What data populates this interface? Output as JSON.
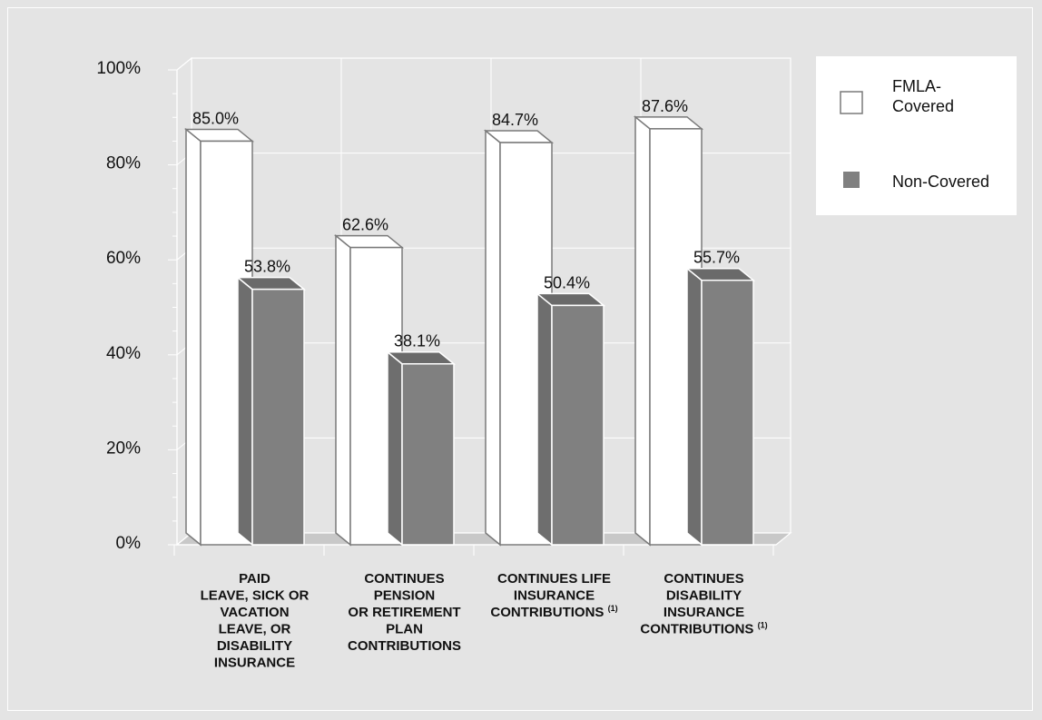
{
  "chart_data": {
    "type": "bar",
    "categories": [
      "PAID LEAVE, SICK OR VACATION LEAVE, OR DISABILITY INSURANCE",
      "CONTINUES PENSION OR RETIREMENT PLAN CONTRIBUTIONS",
      "CONTINUES LIFE INSURANCE CONTRIBUTIONS (1)",
      "CONTINUES DISABILITY INSURANCE CONTRIBUTIONS (1)"
    ],
    "category_lines": [
      [
        "PAID",
        "LEAVE, SICK OR",
        "VACATION",
        "LEAVE, OR",
        "DISABILITY",
        "INSURANCE"
      ],
      [
        "CONTINUES",
        "PENSION",
        "OR RETIREMENT",
        "PLAN",
        "CONTRIBUTIONS"
      ],
      [
        "CONTINUES LIFE",
        "INSURANCE",
        "CONTRIBUTIONS (1)"
      ],
      [
        "CONTINUES",
        "DISABILITY",
        "INSURANCE",
        "CONTRIBUTIONS (1)"
      ]
    ],
    "series": [
      {
        "name": "FMLA-Covered",
        "values": [
          85.0,
          62.6,
          84.7,
          87.6
        ],
        "labels": [
          "85.0%",
          "62.6%",
          "84.7%",
          "87.6%"
        ],
        "color": "#ffffff"
      },
      {
        "name": "Non-Covered",
        "values": [
          53.8,
          38.1,
          50.4,
          55.7
        ],
        "labels": [
          "53.8%",
          "38.1%",
          "50.4%",
          "55.7%"
        ],
        "color": "#808080"
      }
    ],
    "yticks": [
      "0%",
      "20%",
      "40%",
      "60%",
      "80%",
      "100%"
    ],
    "ylim": [
      0,
      100
    ],
    "grid": true,
    "legend": "right",
    "three_d": true
  },
  "legend": {
    "items": [
      {
        "lines": [
          "FMLA-",
          "Covered"
        ],
        "color": "#ffffff"
      },
      {
        "lines": [
          "Non-Covered"
        ],
        "color": "#808080"
      }
    ]
  }
}
